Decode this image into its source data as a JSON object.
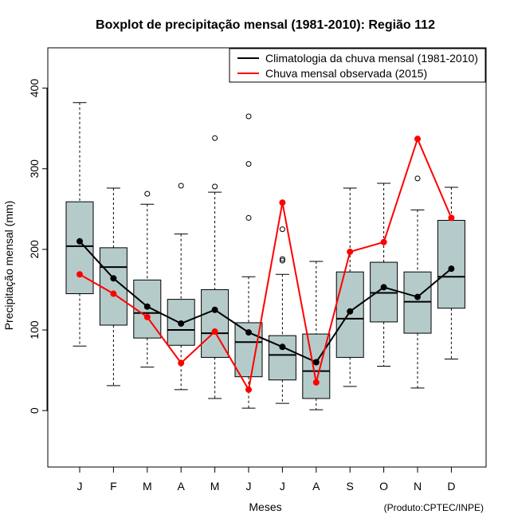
{
  "chart_data": {
    "type": "box",
    "title": "Boxplot de precipitação mensal (1981-2010): Região 112",
    "xlabel": "Meses",
    "ylabel": "Precipitação mensal (mm)",
    "ylim": [
      -70,
      450
    ],
    "yticks": [
      0,
      100,
      200,
      300,
      400
    ],
    "categories": [
      "J",
      "F",
      "M",
      "A",
      "M",
      "J",
      "J",
      "A",
      "S",
      "O",
      "N",
      "D"
    ],
    "boxes": [
      {
        "min": 80,
        "q1": 145,
        "median": 204,
        "q3": 259,
        "max": 382,
        "outliers": []
      },
      {
        "min": 31,
        "q1": 106,
        "median": 178,
        "q3": 202,
        "max": 276,
        "outliers": []
      },
      {
        "min": 54,
        "q1": 90,
        "median": 121,
        "q3": 162,
        "max": 256,
        "outliers": [
          269
        ]
      },
      {
        "min": 26,
        "q1": 81,
        "median": 100,
        "q3": 138,
        "max": 219,
        "outliers": [
          279
        ]
      },
      {
        "min": 15,
        "q1": 66,
        "median": 96,
        "q3": 150,
        "max": 271,
        "outliers": [
          278,
          338
        ]
      },
      {
        "min": 3,
        "q1": 42,
        "median": 85,
        "q3": 109,
        "max": 166,
        "outliers": [
          239,
          306,
          365
        ]
      },
      {
        "min": 9,
        "q1": 38,
        "median": 69,
        "q3": 93,
        "max": 169,
        "outliers": [
          186,
          188,
          225
        ]
      },
      {
        "min": 1,
        "q1": 15,
        "median": 49,
        "q3": 95,
        "max": 185,
        "outliers": []
      },
      {
        "min": 30,
        "q1": 66,
        "median": 114,
        "q3": 172,
        "max": 276,
        "outliers": []
      },
      {
        "min": 55,
        "q1": 110,
        "median": 146,
        "q3": 184,
        "max": 282,
        "outliers": []
      },
      {
        "min": 28,
        "q1": 96,
        "median": 135,
        "q3": 172,
        "max": 249,
        "outliers": [
          288
        ]
      },
      {
        "min": 64,
        "q1": 127,
        "median": 166,
        "q3": 236,
        "max": 277,
        "outliers": []
      }
    ],
    "series": [
      {
        "name": "Climatologia da chuva mensal (1981-2010)",
        "color": "#000000",
        "values": [
          210,
          164,
          129,
          108,
          125,
          97,
          79,
          60,
          123,
          153,
          141,
          176
        ]
      },
      {
        "name": "Chuva mensal observada (2015)",
        "color": "#ff0000",
        "values": [
          169,
          145,
          116,
          59,
          98,
          26,
          258,
          35,
          197,
          209,
          337,
          239
        ]
      }
    ],
    "legend_position": "top-right",
    "box_fill": "#b4cbca",
    "credit": "(Produto:CPTEC/INPE)"
  }
}
